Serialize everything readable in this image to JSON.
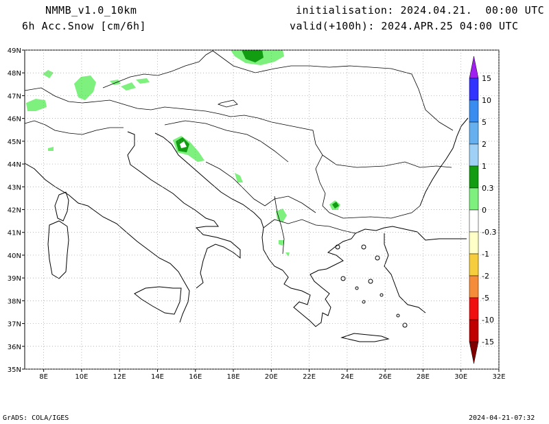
{
  "header": {
    "model": "NMMB_v1.0_10km",
    "field": "6h Acc.Snow [cm/6h]",
    "init": "initialisation: 2024.04.21.  00:00 UTC",
    "valid": "valid(+100h): 2024.APR.25 04:00 UTC"
  },
  "footer": {
    "credit": "GrADS: COLA/IGES",
    "timestamp": "2024-04-21-07:32"
  },
  "map": {
    "lon_range": [
      7,
      32
    ],
    "lat_range": [
      35,
      49
    ],
    "lon_ticks": [
      "8E",
      "10E",
      "12E",
      "14E",
      "16E",
      "18E",
      "20E",
      "22E",
      "24E",
      "26E",
      "28E",
      "30E",
      "32E"
    ],
    "lat_ticks": [
      "35N",
      "36N",
      "37N",
      "38N",
      "39N",
      "40N",
      "41N",
      "42N",
      "43N",
      "44N",
      "45N",
      "46N",
      "47N",
      "48N",
      "49N"
    ],
    "grid": "dotted"
  },
  "colorbar": {
    "labels": [
      "15",
      "10",
      "5",
      "2",
      "1",
      "0.3",
      "0",
      "-0.3",
      "-1",
      "-2",
      "-5",
      "-10",
      "-15"
    ],
    "colors": [
      "#a020f0",
      "#3333ff",
      "#3a8df0",
      "#66b0f0",
      "#9fd0f5",
      "#119c11",
      "#7ef07e",
      "#ffffff",
      "#ffffc8",
      "#f5cd3d",
      "#f58c3a",
      "#f01010",
      "#c00000",
      "#800000"
    ]
  },
  "snow_colors": {
    "light": "#7ef07e",
    "medium": "#119c11",
    "heavy": "#0b5e0b"
  }
}
